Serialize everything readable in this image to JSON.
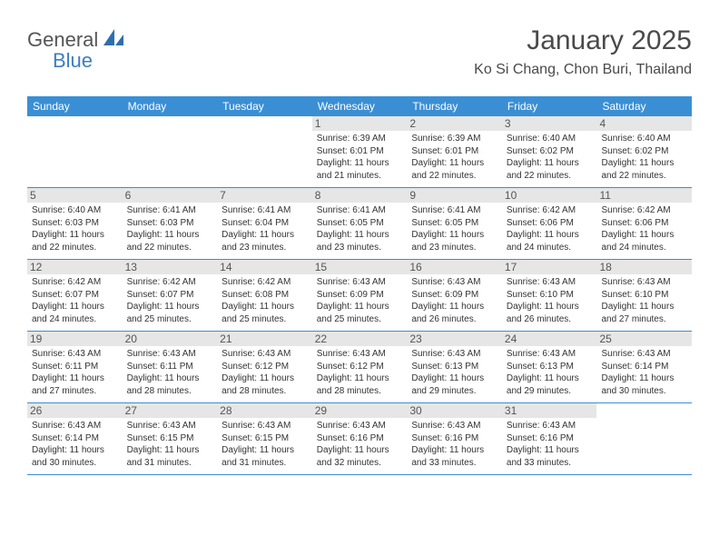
{
  "logo": {
    "text1": "General",
    "text2": "Blue",
    "iconColor": "#2d6fad"
  },
  "header": {
    "title": "January 2025",
    "subtitle": "Ko Si Chang, Chon Buri, Thailand"
  },
  "colors": {
    "headerBar": "#3a8fd4",
    "dayNumBg": "#e6e6e6",
    "border": "#3a8fd4",
    "text": "#333333"
  },
  "dayNames": [
    "Sunday",
    "Monday",
    "Tuesday",
    "Wednesday",
    "Thursday",
    "Friday",
    "Saturday"
  ],
  "weeks": [
    [
      {
        "day": "",
        "text": ""
      },
      {
        "day": "",
        "text": ""
      },
      {
        "day": "",
        "text": ""
      },
      {
        "day": "1",
        "text": "Sunrise: 6:39 AM\nSunset: 6:01 PM\nDaylight: 11 hours and 21 minutes."
      },
      {
        "day": "2",
        "text": "Sunrise: 6:39 AM\nSunset: 6:01 PM\nDaylight: 11 hours and 22 minutes."
      },
      {
        "day": "3",
        "text": "Sunrise: 6:40 AM\nSunset: 6:02 PM\nDaylight: 11 hours and 22 minutes."
      },
      {
        "day": "4",
        "text": "Sunrise: 6:40 AM\nSunset: 6:02 PM\nDaylight: 11 hours and 22 minutes."
      }
    ],
    [
      {
        "day": "5",
        "text": "Sunrise: 6:40 AM\nSunset: 6:03 PM\nDaylight: 11 hours and 22 minutes."
      },
      {
        "day": "6",
        "text": "Sunrise: 6:41 AM\nSunset: 6:03 PM\nDaylight: 11 hours and 22 minutes."
      },
      {
        "day": "7",
        "text": "Sunrise: 6:41 AM\nSunset: 6:04 PM\nDaylight: 11 hours and 23 minutes."
      },
      {
        "day": "8",
        "text": "Sunrise: 6:41 AM\nSunset: 6:05 PM\nDaylight: 11 hours and 23 minutes."
      },
      {
        "day": "9",
        "text": "Sunrise: 6:41 AM\nSunset: 6:05 PM\nDaylight: 11 hours and 23 minutes."
      },
      {
        "day": "10",
        "text": "Sunrise: 6:42 AM\nSunset: 6:06 PM\nDaylight: 11 hours and 24 minutes."
      },
      {
        "day": "11",
        "text": "Sunrise: 6:42 AM\nSunset: 6:06 PM\nDaylight: 11 hours and 24 minutes."
      }
    ],
    [
      {
        "day": "12",
        "text": "Sunrise: 6:42 AM\nSunset: 6:07 PM\nDaylight: 11 hours and 24 minutes."
      },
      {
        "day": "13",
        "text": "Sunrise: 6:42 AM\nSunset: 6:07 PM\nDaylight: 11 hours and 25 minutes."
      },
      {
        "day": "14",
        "text": "Sunrise: 6:42 AM\nSunset: 6:08 PM\nDaylight: 11 hours and 25 minutes."
      },
      {
        "day": "15",
        "text": "Sunrise: 6:43 AM\nSunset: 6:09 PM\nDaylight: 11 hours and 25 minutes."
      },
      {
        "day": "16",
        "text": "Sunrise: 6:43 AM\nSunset: 6:09 PM\nDaylight: 11 hours and 26 minutes."
      },
      {
        "day": "17",
        "text": "Sunrise: 6:43 AM\nSunset: 6:10 PM\nDaylight: 11 hours and 26 minutes."
      },
      {
        "day": "18",
        "text": "Sunrise: 6:43 AM\nSunset: 6:10 PM\nDaylight: 11 hours and 27 minutes."
      }
    ],
    [
      {
        "day": "19",
        "text": "Sunrise: 6:43 AM\nSunset: 6:11 PM\nDaylight: 11 hours and 27 minutes."
      },
      {
        "day": "20",
        "text": "Sunrise: 6:43 AM\nSunset: 6:11 PM\nDaylight: 11 hours and 28 minutes."
      },
      {
        "day": "21",
        "text": "Sunrise: 6:43 AM\nSunset: 6:12 PM\nDaylight: 11 hours and 28 minutes."
      },
      {
        "day": "22",
        "text": "Sunrise: 6:43 AM\nSunset: 6:12 PM\nDaylight: 11 hours and 28 minutes."
      },
      {
        "day": "23",
        "text": "Sunrise: 6:43 AM\nSunset: 6:13 PM\nDaylight: 11 hours and 29 minutes."
      },
      {
        "day": "24",
        "text": "Sunrise: 6:43 AM\nSunset: 6:13 PM\nDaylight: 11 hours and 29 minutes."
      },
      {
        "day": "25",
        "text": "Sunrise: 6:43 AM\nSunset: 6:14 PM\nDaylight: 11 hours and 30 minutes."
      }
    ],
    [
      {
        "day": "26",
        "text": "Sunrise: 6:43 AM\nSunset: 6:14 PM\nDaylight: 11 hours and 30 minutes."
      },
      {
        "day": "27",
        "text": "Sunrise: 6:43 AM\nSunset: 6:15 PM\nDaylight: 11 hours and 31 minutes."
      },
      {
        "day": "28",
        "text": "Sunrise: 6:43 AM\nSunset: 6:15 PM\nDaylight: 11 hours and 31 minutes."
      },
      {
        "day": "29",
        "text": "Sunrise: 6:43 AM\nSunset: 6:16 PM\nDaylight: 11 hours and 32 minutes."
      },
      {
        "day": "30",
        "text": "Sunrise: 6:43 AM\nSunset: 6:16 PM\nDaylight: 11 hours and 33 minutes."
      },
      {
        "day": "31",
        "text": "Sunrise: 6:43 AM\nSunset: 6:16 PM\nDaylight: 11 hours and 33 minutes."
      },
      {
        "day": "",
        "text": ""
      }
    ]
  ]
}
